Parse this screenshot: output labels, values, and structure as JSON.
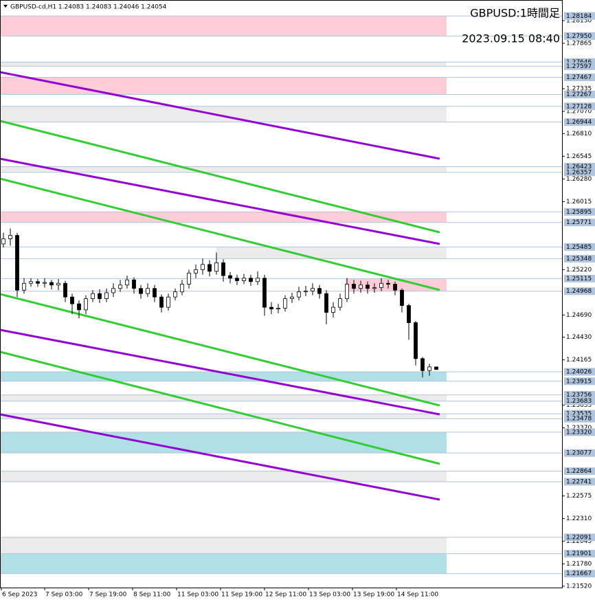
{
  "chart_data": {
    "type": "candlestick",
    "header": "GBPUSD-cd,H1  1.24083 1.24083 1.24046 1.24054",
    "title": "GBPUSD:1時間足",
    "subtitle": "2023.09.15 08:40",
    "up_color": "#ffffff",
    "down_color": "#000000",
    "open": [
      1.2552,
      1.2558,
      1.2562,
      1.2498,
      1.2506,
      1.2508,
      1.2506,
      1.2507,
      1.2504,
      1.2506,
      1.249,
      1.2482,
      1.2475,
      1.2488,
      1.2494,
      1.2488,
      1.2495,
      1.25,
      1.2504,
      1.251,
      1.25,
      1.2494,
      1.25,
      1.249,
      1.2478,
      1.249,
      1.2496,
      1.2505,
      1.2518,
      1.2522,
      1.2528,
      1.252,
      1.253,
      1.2515,
      1.2512,
      1.2509,
      1.2512,
      1.2508,
      1.2512,
      1.2478,
      1.2476,
      1.2477,
      1.2488,
      1.249,
      1.2496,
      1.2497,
      1.25,
      1.2494,
      1.2472,
      1.2478,
      1.2488,
      1.2505,
      1.25,
      1.2504,
      1.25,
      1.2501,
      1.2506,
      1.2505,
      1.2498,
      1.248,
      1.246,
      1.2418,
      1.2404,
      1.24083
    ],
    "high": [
      1.2565,
      1.257,
      1.2565,
      1.2512,
      1.2512,
      1.2511,
      1.2512,
      1.251,
      1.2511,
      1.2509,
      1.2494,
      1.2486,
      1.2492,
      1.2498,
      1.2499,
      1.25,
      1.2506,
      1.251,
      1.2515,
      1.2513,
      1.2504,
      1.2506,
      1.2504,
      1.2493,
      1.2494,
      1.25,
      1.251,
      1.2522,
      1.2528,
      1.2535,
      1.2533,
      1.2542,
      1.2534,
      1.2519,
      1.2516,
      1.2517,
      1.2516,
      1.252,
      1.2516,
      1.2484,
      1.2482,
      1.2492,
      1.2495,
      1.2502,
      1.2503,
      1.2506,
      1.2504,
      1.2498,
      1.2484,
      1.2494,
      1.2512,
      1.251,
      1.2509,
      1.2508,
      1.2506,
      1.2512,
      1.251,
      1.2508,
      1.25,
      1.2482,
      1.2462,
      1.242,
      1.2412,
      1.24083
    ],
    "low": [
      1.2548,
      1.255,
      1.249,
      1.2494,
      1.2502,
      1.2502,
      1.2501,
      1.2499,
      1.2498,
      1.2484,
      1.247,
      1.2465,
      1.247,
      1.2484,
      1.2483,
      1.2484,
      1.249,
      1.2496,
      1.25,
      1.2494,
      1.2488,
      1.249,
      1.2484,
      1.2472,
      1.2474,
      1.2486,
      1.2492,
      1.25,
      1.2512,
      1.2516,
      1.2514,
      1.2516,
      1.2508,
      1.2506,
      1.2504,
      1.2505,
      1.2503,
      1.2504,
      1.2468,
      1.247,
      1.2471,
      1.2473,
      1.2483,
      1.2486,
      1.2491,
      1.2492,
      1.2488,
      1.2458,
      1.2466,
      1.2474,
      1.2484,
      1.2494,
      1.2495,
      1.2494,
      1.2495,
      1.2497,
      1.25,
      1.2492,
      1.2472,
      1.244,
      1.241,
      1.2396,
      1.2398,
      1.24046
    ],
    "close": [
      1.2558,
      1.2562,
      1.2498,
      1.2506,
      1.2508,
      1.2506,
      1.2507,
      1.2504,
      1.2506,
      1.249,
      1.2482,
      1.2475,
      1.2488,
      1.2494,
      1.2488,
      1.2495,
      1.25,
      1.2504,
      1.251,
      1.25,
      1.2494,
      1.25,
      1.249,
      1.2478,
      1.249,
      1.2496,
      1.2505,
      1.2518,
      1.2522,
      1.2528,
      1.252,
      1.253,
      1.2515,
      1.2512,
      1.2509,
      1.2512,
      1.2508,
      1.2512,
      1.2478,
      1.2476,
      1.2477,
      1.2488,
      1.249,
      1.2496,
      1.2497,
      1.25,
      1.2494,
      1.2472,
      1.2478,
      1.2488,
      1.2505,
      1.25,
      1.2504,
      1.25,
      1.2501,
      1.2506,
      1.2505,
      1.2498,
      1.248,
      1.246,
      1.2418,
      1.2404,
      1.24083,
      1.24054
    ],
    "xlim": [
      -0.5,
      81.3
    ],
    "ylim": [
      1.21504,
      1.28371
    ],
    "xticks": [
      {
        "value": -0.3,
        "label": "6 Sep 2023"
      },
      {
        "value": 6,
        "label": "7 Sep 03:00"
      },
      {
        "value": 12.4,
        "label": "7 Sep 19:00"
      },
      {
        "value": 18.8,
        "label": "8 Sep 11:00"
      },
      {
        "value": 25.2,
        "label": "11 Sep 03:00"
      },
      {
        "value": 31.6,
        "label": "11 Sep 19:00"
      },
      {
        "value": 38,
        "label": "12 Sep 11:00"
      },
      {
        "value": 44.4,
        "label": "13 Sep 03:00"
      },
      {
        "value": 50.8,
        "label": "13 Sep 19:00"
      },
      {
        "value": 57.2,
        "label": "14 Sep 11:00"
      }
    ],
    "yticks": [
      {
        "value": 1.2813,
        "label": "1.28130"
      },
      {
        "value": 1.27865,
        "label": "1.27865"
      },
      {
        "value": 1.27335,
        "label": "1.27335"
      },
      {
        "value": 1.2707,
        "label": "1.27070"
      },
      {
        "value": 1.2681,
        "label": "1.26810"
      },
      {
        "value": 1.26545,
        "label": "1.26545"
      },
      {
        "value": 1.2628,
        "label": "1.26280"
      },
      {
        "value": 1.26015,
        "label": "1.26015"
      },
      {
        "value": 1.2522,
        "label": "1.25220"
      },
      {
        "value": 1.2469,
        "label": "1.24690"
      },
      {
        "value": 1.2443,
        "label": "1.24430"
      },
      {
        "value": 1.24165,
        "label": "1.24165"
      },
      {
        "value": 1.23635,
        "label": "1.23635"
      },
      {
        "value": 1.2337,
        "label": "1.23370"
      },
      {
        "value": 1.22575,
        "label": "1.22575"
      },
      {
        "value": 1.2231,
        "label": "1.22310"
      },
      {
        "value": 1.22045,
        "label": "1.22045"
      },
      {
        "value": 1.2178,
        "label": "1.21780"
      },
      {
        "value": 1.2152,
        "label": "1.21520"
      }
    ],
    "levels": [
      {
        "value": 1.28184,
        "label": "1.28184"
      },
      {
        "value": 1.2795,
        "label": "1.27950"
      },
      {
        "value": 1.27646,
        "label": "1.27646"
      },
      {
        "value": 1.27597,
        "label": "1.27597"
      },
      {
        "value": 1.27467,
        "label": "1.27467"
      },
      {
        "value": 1.27267,
        "label": "1.27267"
      },
      {
        "value": 1.27128,
        "label": "1.27128"
      },
      {
        "value": 1.26944,
        "label": "1.26944"
      },
      {
        "value": 1.26423,
        "label": "1.26423"
      },
      {
        "value": 1.26357,
        "label": "1.26357"
      },
      {
        "value": 1.25895,
        "label": "1.25895"
      },
      {
        "value": 1.25771,
        "label": "1.25771"
      },
      {
        "value": 1.25485,
        "label": "1.25485"
      },
      {
        "value": 1.25348,
        "label": "1.25348"
      },
      {
        "value": 1.25115,
        "label": "1.25115"
      },
      {
        "value": 1.24968,
        "label": "1.24968"
      },
      {
        "value": 1.24026,
        "label": "1.24026"
      },
      {
        "value": 1.23915,
        "label": "1.23915"
      },
      {
        "value": 1.23756,
        "label": "1.23756"
      },
      {
        "value": 1.23683,
        "label": "1.23683"
      },
      {
        "value": 1.23535,
        "label": "1.23535"
      },
      {
        "value": 1.23478,
        "label": "1.23478"
      },
      {
        "value": 1.2332,
        "label": "1.23320"
      },
      {
        "value": 1.23077,
        "label": "1.23077"
      },
      {
        "value": 1.22864,
        "label": "1.22864"
      },
      {
        "value": 1.22741,
        "label": "1.22741"
      },
      {
        "value": 1.22091,
        "label": "1.22091"
      },
      {
        "value": 1.21901,
        "label": "1.21901"
      },
      {
        "value": 1.21667,
        "label": "1.21667"
      }
    ],
    "zones": [
      {
        "color": "#ffcdd8",
        "x": [
          -0.5,
          64.5
        ],
        "y": [
          1.28184,
          1.2795
        ]
      },
      {
        "color": "#ebebeb",
        "x": [
          -0.5,
          64.5
        ],
        "y": [
          1.27646,
          1.27597
        ]
      },
      {
        "color": "#ffcdd8",
        "x": [
          -0.5,
          64.5
        ],
        "y": [
          1.27467,
          1.27267
        ]
      },
      {
        "color": "#ebebeb",
        "x": [
          -0.5,
          64.5
        ],
        "y": [
          1.27128,
          1.26944
        ]
      },
      {
        "color": "#ebebeb",
        "x": [
          -0.5,
          64.5
        ],
        "y": [
          1.26423,
          1.26357
        ]
      },
      {
        "color": "#ffcdd8",
        "x": [
          -0.5,
          64.5
        ],
        "y": [
          1.25895,
          1.25771
        ]
      },
      {
        "color": "#ebebeb",
        "x": [
          31,
          64.5
        ],
        "y": [
          1.25485,
          1.25348
        ]
      },
      {
        "color": "#ffcdd8",
        "x": [
          49.8,
          64.5
        ],
        "y": [
          1.25115,
          1.24968
        ]
      },
      {
        "color": "#b0dfe5",
        "x": [
          -0.5,
          64.5
        ],
        "y": [
          1.24026,
          1.23915
        ]
      },
      {
        "color": "#ebebeb",
        "x": [
          -0.5,
          64.5
        ],
        "y": [
          1.23756,
          1.23683
        ]
      },
      {
        "color": "#ebebeb",
        "x": [
          -0.5,
          64.5
        ],
        "y": [
          1.23535,
          1.23478
        ]
      },
      {
        "color": "#b0dfe5",
        "x": [
          -0.5,
          64.5
        ],
        "y": [
          1.2332,
          1.23077
        ]
      },
      {
        "color": "#ebebeb",
        "x": [
          -0.5,
          64.5
        ],
        "y": [
          1.22864,
          1.22741
        ]
      },
      {
        "color": "#ebebeb",
        "x": [
          -0.5,
          64.5
        ],
        "y": [
          1.22091,
          1.21901
        ]
      },
      {
        "color": "#b0dfe5",
        "x": [
          -0.5,
          64.5
        ],
        "y": [
          1.21901,
          1.21667
        ]
      }
    ],
    "trendlines": [
      {
        "color": "#9400d3",
        "x": [
          -0.5,
          63.5
        ],
        "y": [
          1.27528,
          1.26516
        ]
      },
      {
        "color": "#32cd32",
        "x": [
          -0.5,
          63.5
        ],
        "y": [
          1.26958,
          1.25656
        ]
      },
      {
        "color": "#9400d3",
        "x": [
          -0.5,
          63.5
        ],
        "y": [
          1.26516,
          1.2552
        ]
      },
      {
        "color": "#32cd32",
        "x": [
          -0.5,
          63.5
        ],
        "y": [
          1.26283,
          1.24982
        ]
      },
      {
        "color": "#32cd32",
        "x": [
          -0.5,
          63.5
        ],
        "y": [
          1.24934,
          1.23632
        ]
      },
      {
        "color": "#9400d3",
        "x": [
          -0.5,
          63.5
        ],
        "y": [
          1.24516,
          1.23528
        ]
      },
      {
        "color": "#32cd32",
        "x": [
          -0.5,
          63.5
        ],
        "y": [
          1.24259,
          1.2295
        ]
      },
      {
        "color": "#9400d3",
        "x": [
          -0.5,
          63.5
        ],
        "y": [
          1.23528,
          1.22532
        ]
      }
    ]
  }
}
